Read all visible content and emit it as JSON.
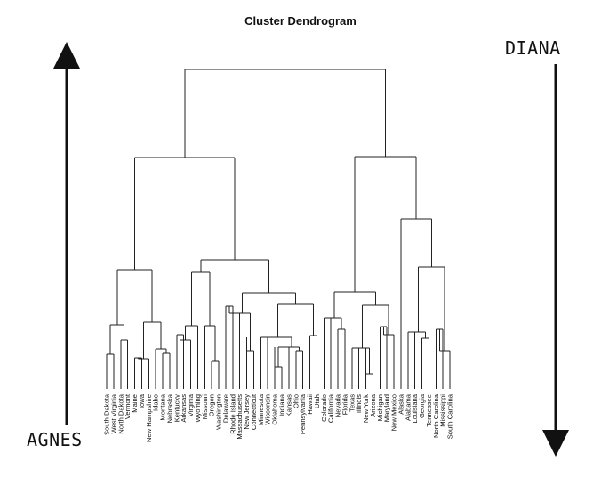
{
  "title": "Cluster Dendrogram",
  "labels": {
    "left": "AGNES",
    "right": "DIANA"
  },
  "leaves": [
    "South Dakota",
    "West Virginia",
    "North Dakota",
    "Vermont",
    "Maine",
    "Iowa",
    "New Hampshire",
    "Idaho",
    "Montana",
    "Nebraska",
    "Kentucky",
    "Arkansas",
    "Virginia",
    "Wyoming",
    "Missouri",
    "Oregon",
    "Washington",
    "Delaware",
    "Rhode Island",
    "Massachusetts",
    "New Jersey",
    "Connecticut",
    "Minnesota",
    "Wisconsin",
    "Oklahoma",
    "Indiana",
    "Kansas",
    "Ohio",
    "Pennsylvania",
    "Hawaii",
    "Utah",
    "Colorado",
    "California",
    "Nevada",
    "Florida",
    "Texas",
    "Illinois",
    "New York",
    "Arizona",
    "Michigan",
    "Maryland",
    "New Mexico",
    "Alaska",
    "Alabama",
    "Louisiana",
    "Georgia",
    "Tennessee",
    "North Carolina",
    "Mississippi",
    "South Carolina"
  ],
  "arrows": {
    "left_direction": "up",
    "right_direction": "down"
  },
  "colors": {
    "lines": "#222222",
    "text": "#111111",
    "background": "#ffffff"
  }
}
